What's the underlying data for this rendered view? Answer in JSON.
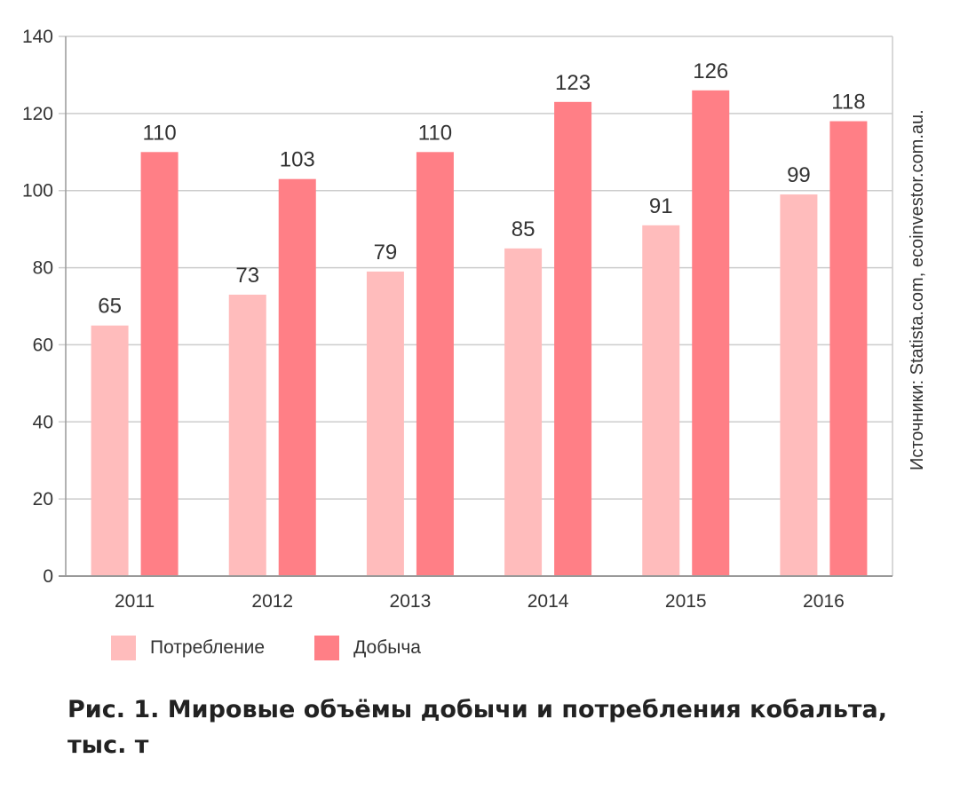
{
  "chart_data": {
    "type": "bar",
    "categories": [
      "2011",
      "2012",
      "2013",
      "2014",
      "2015",
      "2016"
    ],
    "series": [
      {
        "name": "Потребление",
        "values": [
          65,
          73,
          79,
          85,
          91,
          99
        ],
        "color": "#ffbcbc"
      },
      {
        "name": "Добыча",
        "values": [
          110,
          103,
          110,
          123,
          126,
          118
        ],
        "color": "#ff7f86"
      }
    ],
    "data_labels": [
      [
        "65",
        "73",
        "79",
        "85",
        "91",
        "99"
      ],
      [
        "110",
        "103",
        "110",
        "123",
        "126",
        "118"
      ]
    ],
    "ylim": [
      0,
      140
    ],
    "yticks": [
      0,
      20,
      40,
      60,
      80,
      100,
      120,
      140
    ],
    "grid": true,
    "legend": "bottom-left",
    "xlabel": "",
    "ylabel": "",
    "source": "Источники: Statista.com, ecoinvestor.com.au.",
    "caption": "Рис. 1. Мировые объёмы добычи и потребления кобальта, тыс. т",
    "grid_color": "#cccccc",
    "axis_color": "#999999"
  },
  "legend": {
    "items": [
      {
        "label": "Потребление",
        "color": "#ffbcbc"
      },
      {
        "label": "Добыча",
        "color": "#ff7f86"
      }
    ]
  }
}
